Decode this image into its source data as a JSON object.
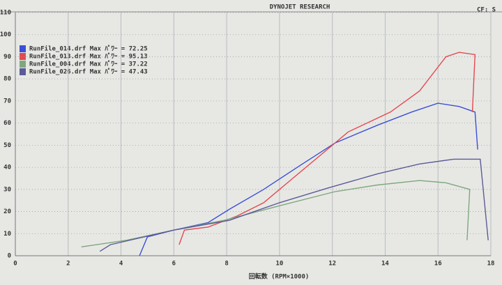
{
  "chart_data": {
    "type": "line",
    "title": "DYNOJET RESEARCH",
    "corner_label": "CF: S",
    "x_label": "回転数 (RPM×1000)",
    "xlim": [
      0,
      18
    ],
    "xticks": [
      0,
      2,
      4,
      6,
      8,
      10,
      12,
      14,
      16,
      18
    ],
    "ylim": [
      0,
      110
    ],
    "yticks": [
      0,
      10,
      20,
      30,
      40,
      50,
      60,
      70,
      80,
      90,
      100,
      110
    ],
    "grid": true,
    "legend": "top-left",
    "series": [
      {
        "name": "RunFile_014.drf Max ﾊﾟﾜｰ = 72.25",
        "color": "#3b4fd6",
        "x": [
          4.7,
          5.0,
          6.0,
          7.3,
          8.1,
          9.4,
          10.8,
          12.1,
          13.7,
          15.0,
          16.0,
          16.8,
          17.4,
          17.5
        ],
        "values": [
          0,
          8.5,
          11.6,
          15,
          21,
          30,
          41,
          51,
          59,
          65,
          69,
          67.5,
          65,
          48
        ]
      },
      {
        "name": "RunFile_013.drf Max ﾊﾟﾜｰ = 95.13",
        "color": "#e5484f",
        "x": [
          6.2,
          6.4,
          7.3,
          8.4,
          9.4,
          10.5,
          11.6,
          12.6,
          14.2,
          15.3,
          16.3,
          16.8,
          17.4,
          17.3
        ],
        "values": [
          5,
          11.6,
          13,
          18,
          24,
          35,
          46,
          56,
          65,
          74.5,
          90,
          92,
          91,
          65
        ]
      },
      {
        "name": "RunFile_004.drf Max ﾊﾟﾜｰ = 37.22",
        "color": "#7fa77f",
        "x": [
          2.5,
          4.2,
          6.0,
          7.9,
          10.0,
          12.1,
          13.7,
          15.3,
          16.3,
          17.2,
          17.1
        ],
        "values": [
          4,
          7,
          11.6,
          16,
          22.6,
          29,
          32,
          34,
          33,
          30,
          7
        ]
      },
      {
        "name": "RunFile_026.drf Max ﾊﾟﾜｰ = 47.43",
        "color": "#5b5a98",
        "x": [
          3.2,
          3.6,
          6.0,
          8.1,
          10.0,
          11.8,
          13.7,
          15.3,
          16.6,
          17.6,
          17.9
        ],
        "values": [
          2,
          5,
          11.6,
          16,
          24,
          30.5,
          37,
          41.5,
          43.7,
          43.7,
          7
        ]
      }
    ]
  }
}
